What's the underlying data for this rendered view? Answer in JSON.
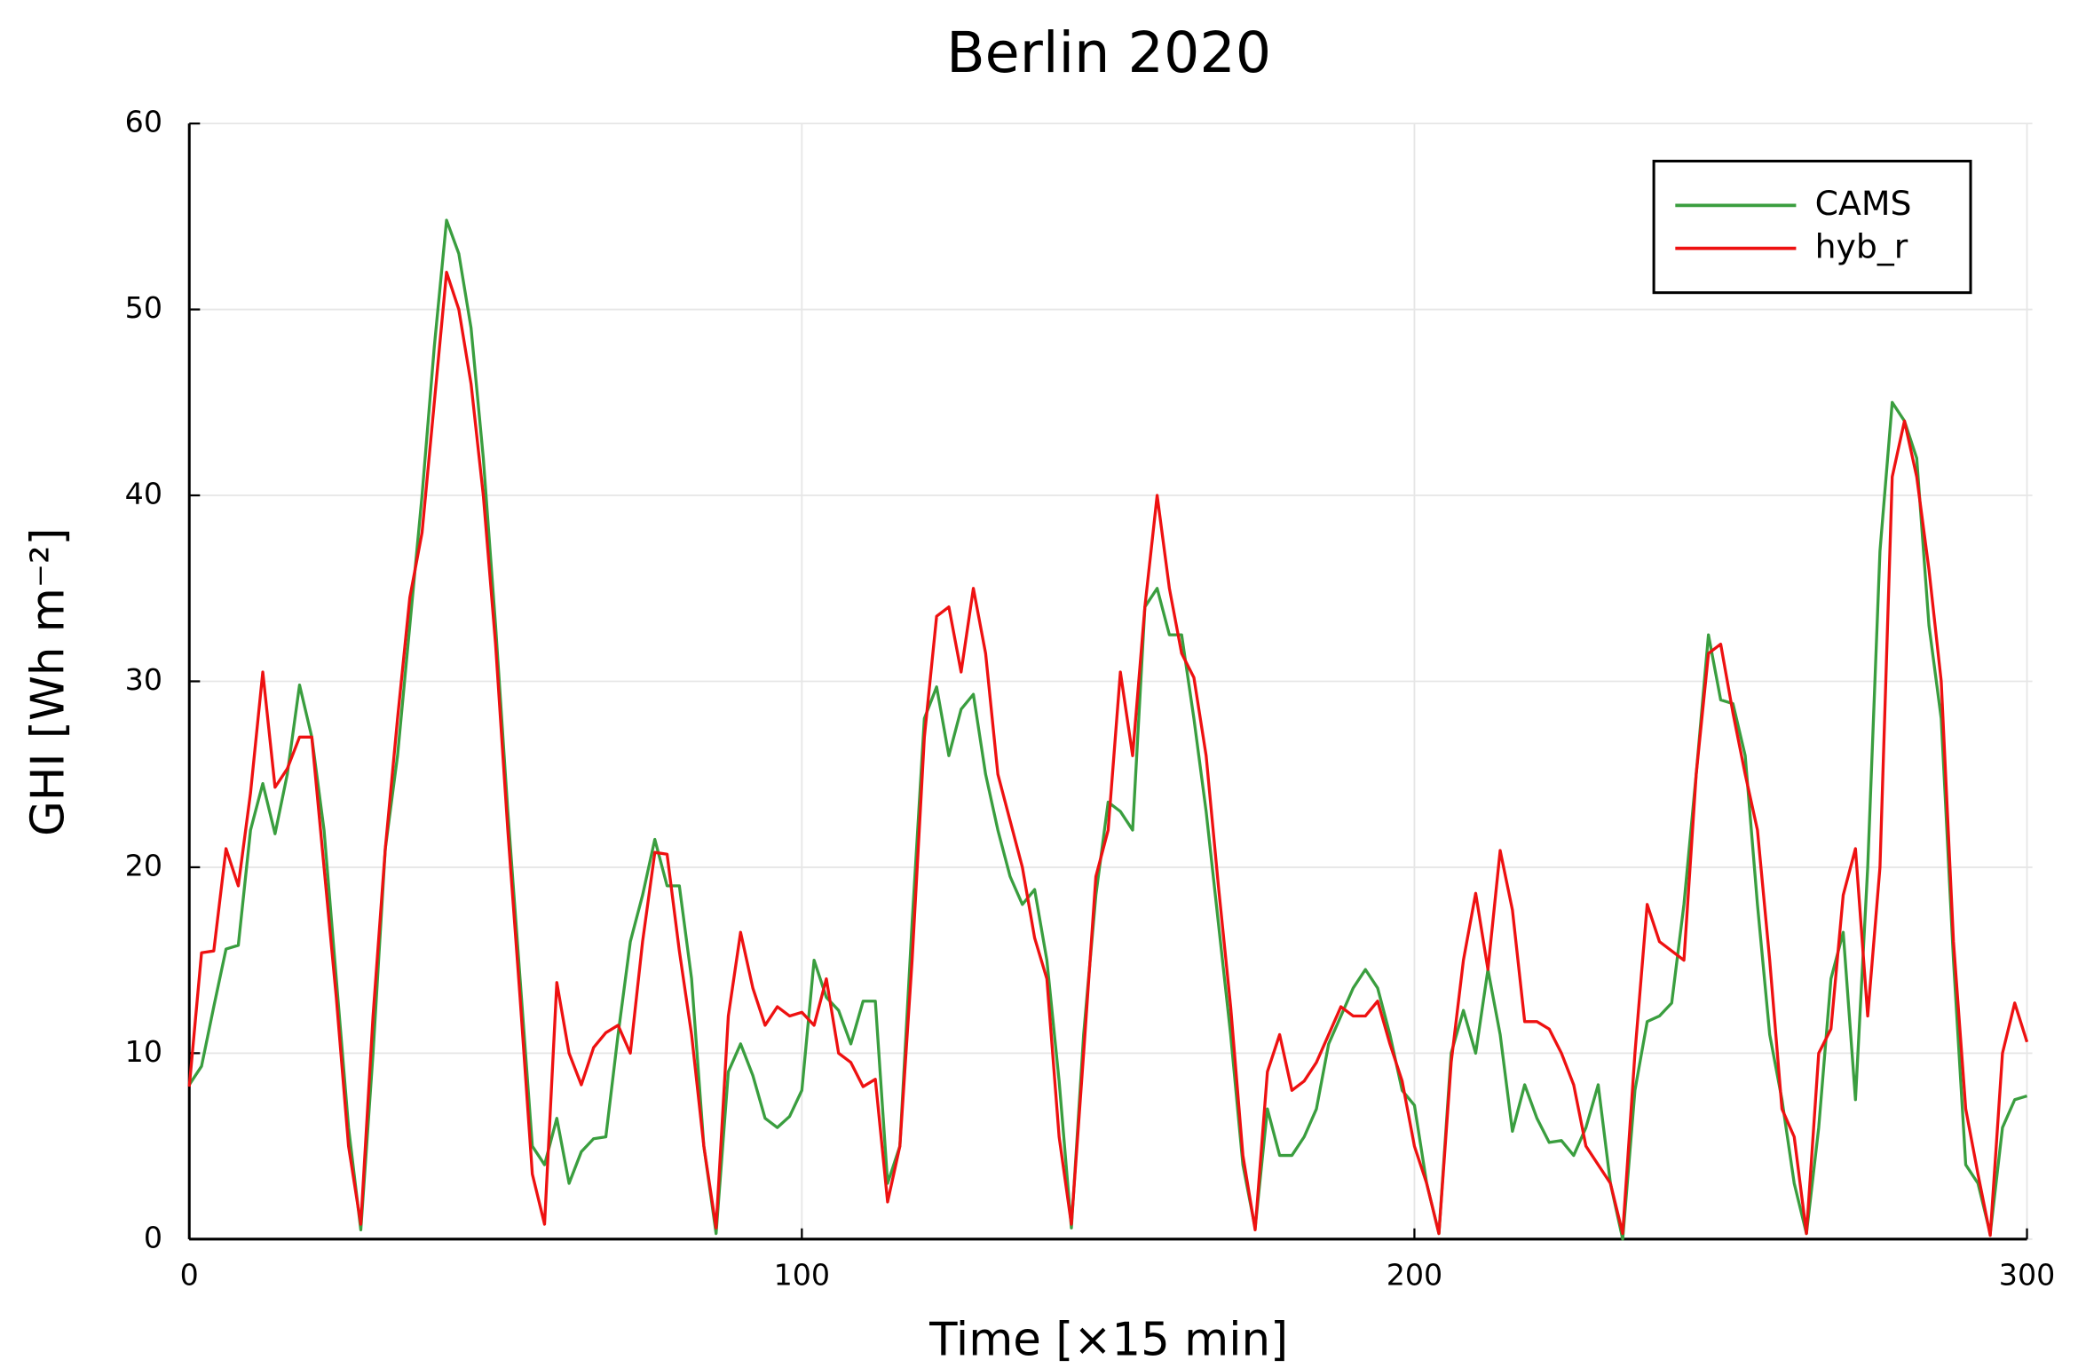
{
  "chart_data": {
    "type": "line",
    "title": "Berlin 2020",
    "x_label": "Time [×15 min]",
    "y_label": "GHI [Wh m⁻²]",
    "x": [
      0,
      2,
      4,
      6,
      8,
      10,
      12,
      14,
      16,
      18,
      20,
      22,
      24,
      26,
      28,
      30,
      32,
      34,
      36,
      38,
      40,
      42,
      44,
      46,
      48,
      50,
      52,
      54,
      56,
      58,
      60,
      62,
      64,
      66,
      68,
      70,
      72,
      74,
      76,
      78,
      80,
      82,
      84,
      86,
      88,
      90,
      92,
      94,
      96,
      98,
      100,
      102,
      104,
      106,
      108,
      110,
      112,
      114,
      116,
      118,
      120,
      122,
      124,
      126,
      128,
      130,
      132,
      134,
      136,
      138,
      140,
      142,
      144,
      146,
      148,
      150,
      152,
      154,
      156,
      158,
      160,
      162,
      164,
      166,
      168,
      170,
      172,
      174,
      176,
      178,
      180,
      182,
      184,
      186,
      188,
      190,
      192,
      194,
      196,
      198,
      200,
      202,
      204,
      206,
      208,
      210,
      212,
      214,
      216,
      218,
      220,
      222,
      224,
      226,
      228,
      230,
      232,
      234,
      236,
      238,
      240,
      242,
      244,
      246,
      248,
      250,
      252,
      254,
      256,
      258,
      260,
      262,
      264,
      266,
      268,
      270,
      272,
      274,
      276,
      278,
      280,
      282,
      284,
      286,
      288,
      290,
      292,
      294,
      296,
      298,
      300
    ],
    "series": [
      {
        "name": "CAMS",
        "color": "#3a9e3f",
        "values": [
          8.3,
          9.3,
          12.5,
          15.6,
          15.8,
          22,
          24.5,
          21.8,
          25,
          29.8,
          27,
          22,
          14,
          6,
          0.5,
          10,
          21,
          26,
          33,
          40,
          48,
          54.8,
          53,
          49,
          42,
          33,
          23,
          14,
          5,
          4,
          6.5,
          3,
          4.7,
          5.4,
          5.5,
          11,
          16,
          18.5,
          21.5,
          19,
          19,
          14,
          5,
          0.3,
          9,
          10.5,
          8.8,
          6.5,
          6,
          6.6,
          8,
          15,
          13,
          12.3,
          10.5,
          12.8,
          12.8,
          3,
          5,
          17,
          28,
          29.7,
          26,
          28.5,
          29.3,
          25,
          22,
          19.5,
          18,
          18.8,
          15,
          8.5,
          0.6,
          11,
          18.5,
          23.5,
          23,
          22,
          34,
          35,
          32.5,
          32.5,
          28,
          23,
          17,
          11,
          4,
          0.6,
          7,
          4.5,
          4.5,
          5.5,
          7,
          10.5,
          12,
          13.5,
          14.5,
          13.5,
          11,
          8,
          7.2,
          3,
          0.3,
          10,
          12.3,
          10,
          14.5,
          11,
          5.8,
          8.3,
          6.5,
          5.2,
          5.3,
          4.5,
          6,
          8.3,
          3,
          0,
          8,
          11.7,
          12,
          12.7,
          18,
          25,
          32.5,
          29,
          28.8,
          26,
          18,
          11,
          7.5,
          3,
          0.3,
          6,
          14,
          16.5,
          7.5,
          20,
          37,
          45,
          44,
          42,
          33,
          28,
          15,
          4,
          3,
          0.3,
          6,
          7.5,
          7.7
        ]
      },
      {
        "name": "hyb_r",
        "color": "#ee1111",
        "values": [
          8.2,
          15.4,
          15.5,
          21,
          19,
          24,
          30.5,
          24.3,
          25.3,
          27,
          27,
          20,
          13,
          5,
          0.8,
          12,
          21,
          28,
          34.5,
          38,
          45,
          52,
          50,
          46,
          40,
          32,
          22,
          13,
          3.5,
          0.8,
          13.8,
          10,
          8.3,
          10.3,
          11.1,
          11.5,
          10,
          16,
          20.8,
          20.7,
          15.5,
          11,
          5,
          0.6,
          12,
          16.5,
          13.5,
          11.5,
          12.5,
          12,
          12.2,
          11.5,
          14,
          10,
          9.5,
          8.2,
          8.6,
          2,
          5,
          15,
          27,
          33.5,
          34,
          30.5,
          35,
          31.5,
          25,
          22.5,
          20,
          16.2,
          14,
          5.5,
          0.8,
          10,
          19.5,
          22,
          30.5,
          26,
          34,
          40,
          35,
          31.5,
          30.2,
          26,
          19,
          12.5,
          4.5,
          0.5,
          9,
          11,
          8,
          8.5,
          9.5,
          11,
          12.5,
          12,
          12,
          12.8,
          10.5,
          8.5,
          5,
          3,
          0.3,
          9.5,
          15,
          18.6,
          14.5,
          20.9,
          17.7,
          11.7,
          11.7,
          11.3,
          10,
          8.3,
          5,
          4,
          3,
          0.3,
          10,
          18,
          16,
          15.5,
          15,
          25,
          31.5,
          32,
          28.3,
          25,
          22,
          15,
          7,
          5.5,
          0.3,
          10,
          11.3,
          18.5,
          21,
          12,
          20,
          41,
          44,
          41,
          36,
          30,
          16,
          7,
          3.5,
          0.2,
          10,
          12.7,
          10.6
        ]
      }
    ],
    "xlim": [
      0,
      300
    ],
    "xticks": [
      0,
      100,
      200,
      300
    ],
    "ylim": [
      0,
      60
    ],
    "yticks": [
      0,
      10,
      20,
      30,
      40,
      50,
      60
    ],
    "grid": true,
    "legend": "top-right"
  }
}
